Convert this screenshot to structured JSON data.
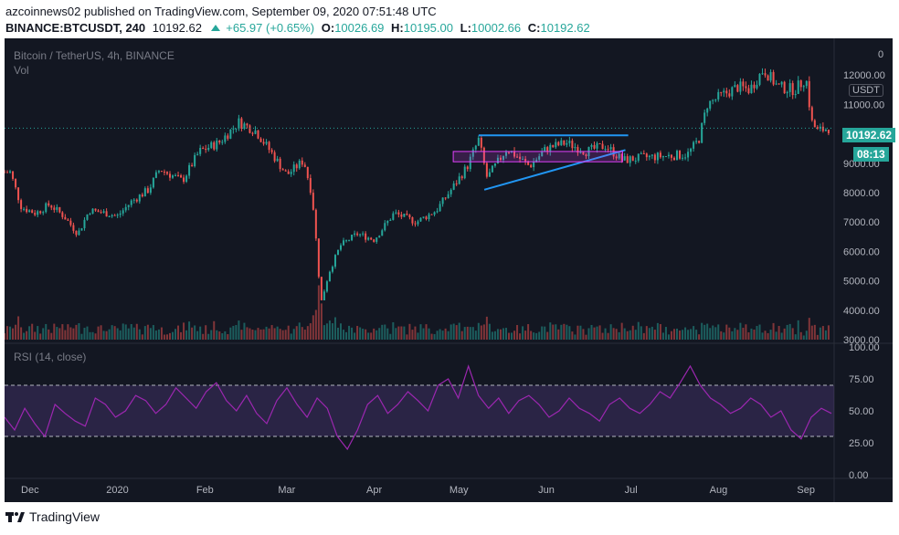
{
  "header": {
    "line1": "azcoinnews02 published on TradingView.com, September 09, 2020 07:51:48 UTC",
    "symbol": "BINANCE:BTCUSDT, 240",
    "last": "10192.62",
    "change": "+65.97 (+0.65%)",
    "open_label": "O:",
    "open": "10026.69",
    "high_label": "H:",
    "high": "10195.00",
    "low_label": "L:",
    "low": "10002.66",
    "close_label": "C:",
    "close": "10192.62"
  },
  "main_pane": {
    "title": "Bitcoin / TetherUS, 4h, BINANCE",
    "vol_label": "Vol",
    "currency_badge": "USDT",
    "price_tag": "10192.62",
    "countdown_tag": "08:13",
    "cursor_partial": "0"
  },
  "rsi_pane": {
    "title": "RSI (14, close)"
  },
  "footer": {
    "brand": "TradingView"
  },
  "colors": {
    "background": "#131722",
    "up": "#26a69a",
    "down": "#ef5350",
    "rsi": "#9c27b0",
    "trendline": "#2196f3",
    "range_box": "#e040fb"
  },
  "chart_data": [
    {
      "type": "candlestick",
      "title": "Bitcoin / TetherUS, 4h, BINANCE",
      "ylim": [
        3000,
        13000
      ],
      "y_ticks": [
        "12000.00",
        "11000.00",
        "10000.00",
        "9000.00",
        "8000.00",
        "7000.00",
        "6000.00",
        "5000.00",
        "4000.00",
        "3000.00"
      ],
      "x_ticks": [
        "Dec",
        "2020",
        "Feb",
        "Mar",
        "Apr",
        "May",
        "Jun",
        "Jul",
        "Aug",
        "Sep"
      ],
      "grid": false,
      "close_path": [
        {
          "x": "2019-11-24",
          "y": 8700
        },
        {
          "x": "2019-11-28",
          "y": 7500
        },
        {
          "x": "2019-12-03",
          "y": 7300
        },
        {
          "x": "2019-12-08",
          "y": 7600
        },
        {
          "x": "2019-12-13",
          "y": 7200
        },
        {
          "x": "2019-12-18",
          "y": 6600
        },
        {
          "x": "2019-12-22",
          "y": 7400
        },
        {
          "x": "2019-12-28",
          "y": 7300
        },
        {
          "x": "2020-01-01",
          "y": 7200
        },
        {
          "x": "2020-01-06",
          "y": 7700
        },
        {
          "x": "2020-01-12",
          "y": 8100
        },
        {
          "x": "2020-01-16",
          "y": 8800
        },
        {
          "x": "2020-01-24",
          "y": 8400
        },
        {
          "x": "2020-01-30",
          "y": 9400
        },
        {
          "x": "2020-02-06",
          "y": 9700
        },
        {
          "x": "2020-02-13",
          "y": 10400
        },
        {
          "x": "2020-02-19",
          "y": 10100
        },
        {
          "x": "2020-02-25",
          "y": 9300
        },
        {
          "x": "2020-03-01",
          "y": 8600
        },
        {
          "x": "2020-03-07",
          "y": 9100
        },
        {
          "x": "2020-03-10",
          "y": 7900
        },
        {
          "x": "2020-03-12",
          "y": 5700
        },
        {
          "x": "2020-03-13",
          "y": 4200
        },
        {
          "x": "2020-03-16",
          "y": 5300
        },
        {
          "x": "2020-03-20",
          "y": 6200
        },
        {
          "x": "2020-03-26",
          "y": 6600
        },
        {
          "x": "2020-04-01",
          "y": 6400
        },
        {
          "x": "2020-04-08",
          "y": 7300
        },
        {
          "x": "2020-04-16",
          "y": 7000
        },
        {
          "x": "2020-04-23",
          "y": 7400
        },
        {
          "x": "2020-04-29",
          "y": 8200
        },
        {
          "x": "2020-05-04",
          "y": 8900
        },
        {
          "x": "2020-05-08",
          "y": 9800
        },
        {
          "x": "2020-05-11",
          "y": 8500
        },
        {
          "x": "2020-05-18",
          "y": 9500
        },
        {
          "x": "2020-05-26",
          "y": 8900
        },
        {
          "x": "2020-06-01",
          "y": 9500
        },
        {
          "x": "2020-06-08",
          "y": 9700
        },
        {
          "x": "2020-06-15",
          "y": 9400
        },
        {
          "x": "2020-06-22",
          "y": 9600
        },
        {
          "x": "2020-06-28",
          "y": 9100
        },
        {
          "x": "2020-07-06",
          "y": 9200
        },
        {
          "x": "2020-07-14",
          "y": 9250
        },
        {
          "x": "2020-07-21",
          "y": 9300
        },
        {
          "x": "2020-07-25",
          "y": 9800
        },
        {
          "x": "2020-07-28",
          "y": 11000
        },
        {
          "x": "2020-08-02",
          "y": 11300
        },
        {
          "x": "2020-08-08",
          "y": 11600
        },
        {
          "x": "2020-08-12",
          "y": 11500
        },
        {
          "x": "2020-08-17",
          "y": 12200
        },
        {
          "x": "2020-08-22",
          "y": 11600
        },
        {
          "x": "2020-08-28",
          "y": 11500
        },
        {
          "x": "2020-09-01",
          "y": 11900
        },
        {
          "x": "2020-09-03",
          "y": 10400
        },
        {
          "x": "2020-09-05",
          "y": 10100
        },
        {
          "x": "2020-09-09",
          "y": 10192.62
        }
      ],
      "last_price": 10192.62,
      "annotations": [
        {
          "type": "horizontal-line",
          "from": "2020-05-08",
          "to": "2020-06-30",
          "y": 9950
        },
        {
          "type": "trendline",
          "from": {
            "x": "2020-05-10",
            "y": 8100
          },
          "to": {
            "x": "2020-06-29",
            "y": 9450
          }
        },
        {
          "type": "range-box",
          "from": "2020-04-29",
          "to": "2020-06-28",
          "y_top": 9400,
          "y_bottom": 9050
        }
      ]
    },
    {
      "type": "line",
      "title": "RSI (14, close)",
      "ylim": [
        0,
        100
      ],
      "y_ticks": [
        "100.00",
        "75.00",
        "50.00",
        "25.00",
        "0.00"
      ],
      "bands": [
        30,
        70
      ],
      "series": [
        {
          "values": [
            45,
            35,
            52,
            40,
            30,
            55,
            48,
            42,
            38,
            60,
            55,
            45,
            50,
            62,
            58,
            48,
            55,
            68,
            60,
            52,
            65,
            72,
            58,
            50,
            62,
            48,
            40,
            58,
            68,
            55,
            45,
            60,
            52,
            30,
            20,
            35,
            55,
            62,
            48,
            55,
            65,
            58,
            50,
            70,
            75,
            60,
            85,
            62,
            52,
            60,
            48,
            58,
            62,
            55,
            45,
            50,
            60,
            52,
            48,
            42,
            55,
            60,
            52,
            48,
            55,
            65,
            60,
            72,
            85,
            70,
            60,
            55,
            48,
            52,
            60,
            55,
            45,
            50,
            35,
            28,
            45,
            52,
            48
          ]
        }
      ]
    }
  ]
}
